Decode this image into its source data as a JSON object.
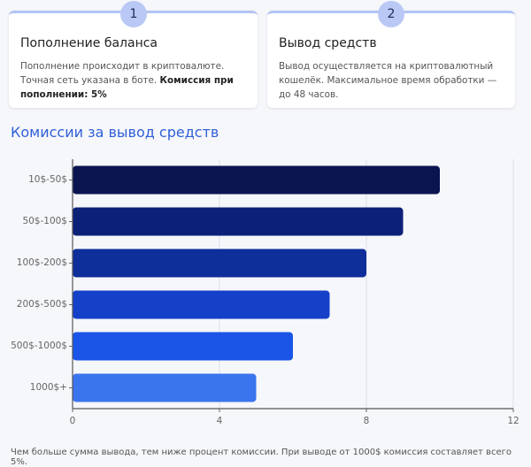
{
  "cards": [
    {
      "number": "1",
      "title": "Пополнение баланса",
      "text": "Пополнение происходит в криптовалюте. Точная сеть указана в боте. ",
      "bold": "Комиссия при пополнении: 5%"
    },
    {
      "number": "2",
      "title": "Вывод средств",
      "text": "Вывод осуществляется на криптовалютный кошелёк. Максимальное время обработки — до 48 часов.",
      "bold": ""
    }
  ],
  "section_title": "Комиссии за вывод средств",
  "footnote": "Чем больше сумма вывода, тем ниже процент комиссии. При выводе от 1000$ комиссия составляет всего 5%.",
  "chart_data": {
    "type": "bar",
    "orientation": "horizontal",
    "categories": [
      "10$-50$",
      "50$-100$",
      "100$-200$",
      "200$-500$",
      "500$-1000$",
      "1000$+"
    ],
    "values": [
      10,
      9,
      8,
      7,
      6,
      5
    ],
    "xlim": [
      0,
      12
    ],
    "x_ticks": [
      0,
      4,
      8,
      12
    ],
    "grid": true,
    "colors": [
      "#0a1550",
      "#0c2078",
      "#0e2e9a",
      "#1540c8",
      "#1a55e8",
      "#3b75ee"
    ],
    "title": "",
    "xlabel": "",
    "ylabel": ""
  }
}
